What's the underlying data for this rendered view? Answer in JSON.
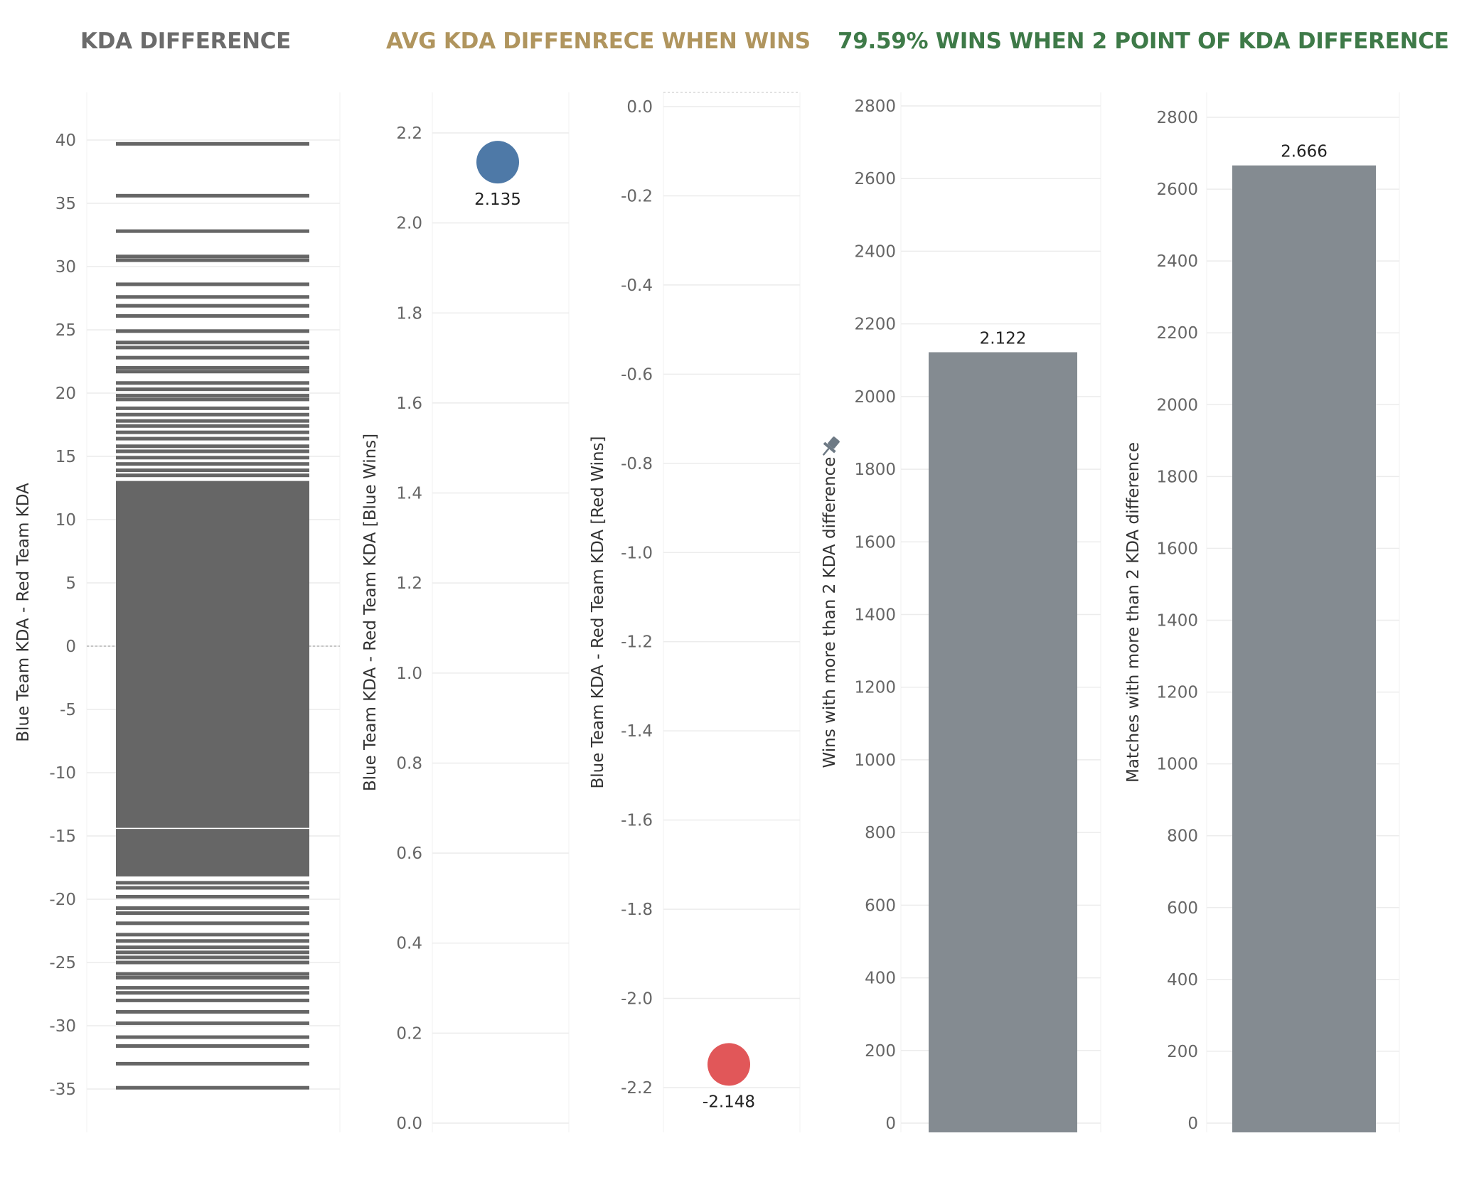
{
  "titles": {
    "kda_difference": "KDA DIFFERENCE",
    "avg_kda": "AVG KDA DIFFENRECE WHEN WINS",
    "win_rate": "79.59% WINS WHEN 2 POINT OF KDA DIFFERENCE"
  },
  "colors": {
    "title_gray": "#6b6b6b",
    "title_gold": "#b0955e",
    "title_green": "#3e7a48",
    "stripe_gray": "#666666",
    "blue_point": "#4e79a7",
    "red_point": "#e15759",
    "bar_gray": "#848b91",
    "grid": "#ececec",
    "pin": "#6e7a85"
  },
  "chart_data": [
    {
      "type": "strip",
      "name": "kda-difference",
      "ylabel": "Blue Team KDA - Red Team KDA",
      "ylim": [
        -38.5,
        44.0
      ],
      "yticks": [
        40,
        35,
        30,
        25,
        20,
        15,
        10,
        5,
        0,
        -5,
        -10,
        -15,
        -20,
        -25,
        -30,
        -35
      ],
      "dense_band": [
        -18.2,
        13.1
      ],
      "dense_band_separators": [
        -14.4,
        13.1
      ],
      "values": [
        39.7,
        35.6,
        32.8,
        30.8,
        30.5,
        28.6,
        27.6,
        26.9,
        26.1,
        24.9,
        24.0,
        23.6,
        22.8,
        22.0,
        21.7,
        20.8,
        20.3,
        19.8,
        19.5,
        18.8,
        18.3,
        17.8,
        17.4,
        16.9,
        16.4,
        15.8,
        15.4,
        14.9,
        14.4,
        13.9,
        13.5,
        -18.7,
        -19.1,
        -19.8,
        -20.7,
        -21.1,
        -21.9,
        -22.8,
        -23.3,
        -23.8,
        -24.2,
        -24.6,
        -25.0,
        -25.9,
        -26.2,
        -27.0,
        -27.4,
        -28.0,
        -28.9,
        -29.8,
        -30.9,
        -31.6,
        -33.0,
        -34.9
      ]
    },
    {
      "type": "scatter",
      "name": "blue-wins",
      "ylabel": "Blue Team KDA - Red Team KDA [Blue Wins]",
      "ylim": [
        0.0,
        2.3
      ],
      "yticks": [
        "0.0",
        "0.2",
        "0.4",
        "0.6",
        "0.8",
        "1.0",
        "1.2",
        "1.4",
        "1.6",
        "1.8",
        "2.0",
        "2.2"
      ],
      "value": 2.135,
      "label": "2.135"
    },
    {
      "type": "scatter",
      "name": "red-wins",
      "ylabel": "Blue Team KDA - Red Team KDA [Red Wins]",
      "ylim": [
        -2.3,
        0.03
      ],
      "yticks": [
        "0.0",
        "-0.2",
        "-0.4",
        "-0.6",
        "-0.8",
        "-1.0",
        "-1.2",
        "-1.4",
        "-1.6",
        "-1.8",
        "-2.0",
        "-2.2"
      ],
      "value": -2.148,
      "label": "-2.148"
    },
    {
      "type": "bar",
      "name": "wins-bar",
      "ylabel": "Wins with more than 2 KDA difference",
      "ylim": [
        0,
        2830
      ],
      "yticks": [
        0,
        200,
        400,
        600,
        800,
        1000,
        1200,
        1400,
        1600,
        1800,
        2000,
        2200,
        2400,
        2600,
        2800
      ],
      "value": 2122,
      "label": "2.122"
    },
    {
      "type": "bar",
      "name": "matches-bar",
      "ylabel": "Matches with more than 2 KDA difference",
      "ylim": [
        0,
        2850
      ],
      "yticks": [
        0,
        200,
        400,
        600,
        800,
        1000,
        1200,
        1400,
        1600,
        1800,
        2000,
        2200,
        2400,
        2600,
        2800
      ],
      "value": 2666,
      "label": "2.666"
    }
  ]
}
